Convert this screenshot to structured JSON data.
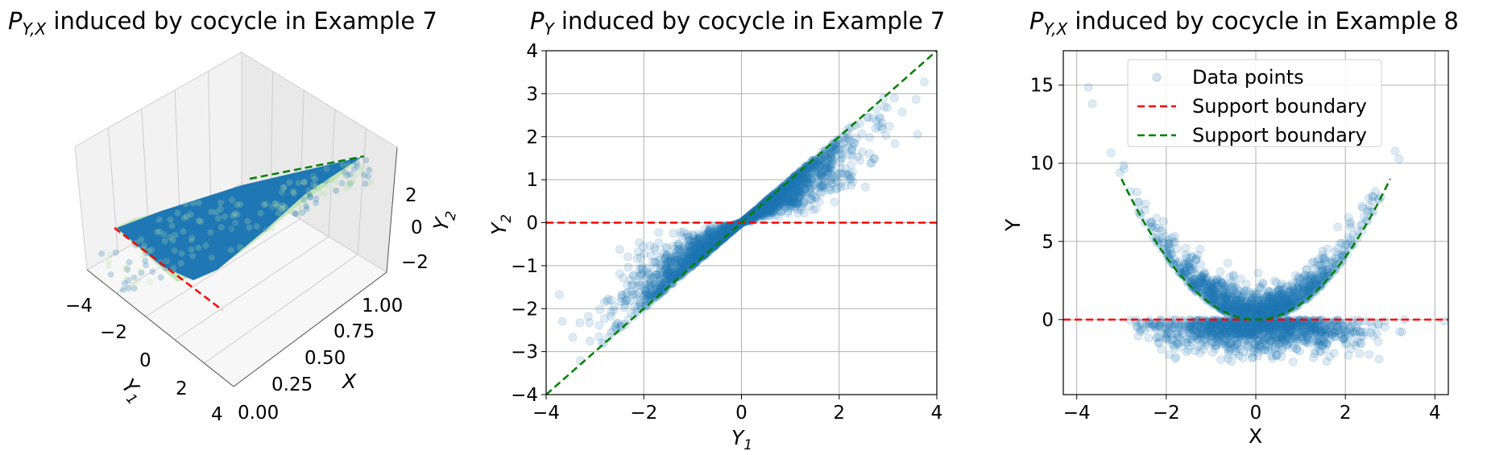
{
  "chart_data": [
    {
      "type": "scatter",
      "title": "P_{Y,X} induced by cocycle in Example 7",
      "title_main": "P",
      "title_sub": "Y,X",
      "title_rest": " induced by cocycle in Example 7",
      "projection": "3d",
      "xlabel_main": "Y",
      "xlabel_sub": "1",
      "ylabel": "X",
      "zlabel_main": "Y",
      "zlabel_sub": "2",
      "xticks": [
        "−4",
        "−2",
        "0",
        "2",
        "4"
      ],
      "yticks": [
        "0.00",
        "0.25",
        "0.50",
        "0.75",
        "1.00"
      ],
      "zticks": [
        "2",
        "0",
        "−2"
      ],
      "xlim": [
        -4,
        4
      ],
      "ylim": [
        0,
        1
      ],
      "zlim": [
        -3,
        3
      ],
      "point_color": "#1f77b4",
      "secondary_color": "#b5e0a6",
      "boundary_colors": [
        "#ff0000",
        "#008000"
      ]
    },
    {
      "type": "scatter",
      "title_main": "P",
      "title_sub": "Y",
      "title_rest": " induced by cocycle in Example 7",
      "xlabel_main": "Y",
      "xlabel_sub": "1",
      "ylabel_main": "Y",
      "ylabel_sub": "2",
      "xlim": [
        -4,
        4
      ],
      "ylim": [
        -4,
        4
      ],
      "xticks": [
        -4,
        -2,
        0,
        2,
        4
      ],
      "xtick_labels": [
        "−4",
        "−2",
        "0",
        "2",
        "4"
      ],
      "yticks": [
        -4,
        -3,
        -2,
        -1,
        0,
        1,
        2,
        3,
        4
      ],
      "ytick_labels": [
        "−4",
        "−3",
        "−2",
        "−1",
        "0",
        "1",
        "2",
        "3",
        "4"
      ],
      "grid": true,
      "series": [
        {
          "kind": "points",
          "color": "#1f77b4",
          "alpha": 0.15
        },
        {
          "kind": "line",
          "style": "dashed",
          "color": "#ff0000",
          "x": [
            -4,
            4
          ],
          "y": [
            0,
            0
          ]
        },
        {
          "kind": "line",
          "style": "dashed",
          "color": "#008000",
          "x": [
            -4,
            4
          ],
          "y": [
            -4,
            4
          ]
        }
      ]
    },
    {
      "type": "scatter",
      "title_main": "P",
      "title_sub": "Y,X",
      "title_rest": " induced by cocycle in Example 8",
      "xlabel": "X",
      "ylabel": "Y",
      "xlim": [
        -4.3,
        4.3
      ],
      "ylim": [
        -4.8,
        17.2
      ],
      "xticks": [
        -4,
        -2,
        0,
        2,
        4
      ],
      "xtick_labels": [
        "−4",
        "−2",
        "0",
        "2",
        "4"
      ],
      "yticks": [
        0,
        5,
        10,
        15
      ],
      "ytick_labels": [
        "0",
        "5",
        "10",
        "15"
      ],
      "grid": true,
      "legend_position": "top-center",
      "legend": [
        "Data points",
        "Support boundary",
        "Support boundary"
      ],
      "series": [
        {
          "name": "Data points",
          "kind": "points",
          "color": "#1f77b4",
          "alpha": 0.15
        },
        {
          "name": "Support boundary",
          "kind": "line",
          "style": "dashed",
          "color": "#ff0000",
          "x": [
            -4.3,
            4.3
          ],
          "y": [
            0,
            0
          ]
        },
        {
          "name": "Support boundary",
          "kind": "curve",
          "style": "dashed",
          "color": "#008000",
          "function": "y = x^2",
          "x": [
            -3,
            3
          ]
        }
      ]
    }
  ]
}
